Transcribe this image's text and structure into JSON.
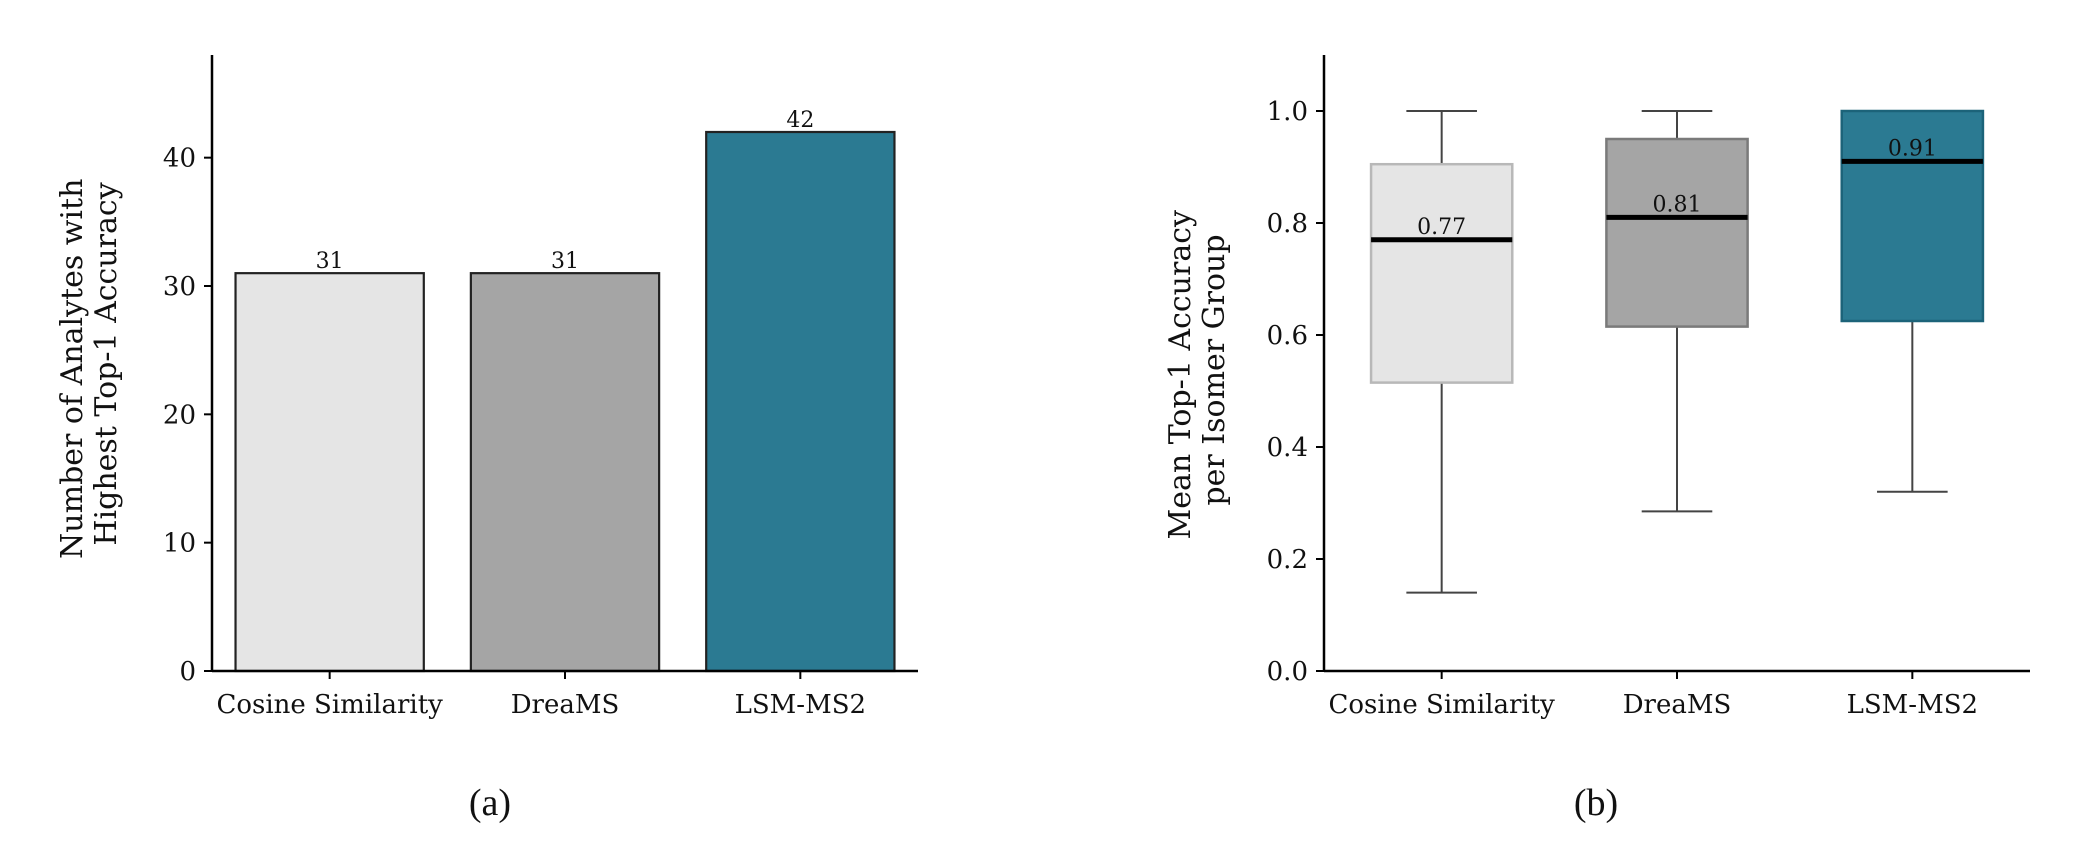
{
  "colors": {
    "cosine": "#e5e5e5",
    "dreams": "#a5a5a5",
    "lsm": "#2b7a92",
    "axis": "#000000"
  },
  "captions": {
    "a": "(a)",
    "b": "(b)"
  },
  "chart_data": [
    {
      "type": "bar",
      "categories": [
        "Cosine Similarity",
        "DreaMS",
        "LSM-MS2"
      ],
      "values": [
        31,
        31,
        42
      ],
      "data_labels": [
        "31",
        "31",
        "42"
      ],
      "ylabel_line1": "Number of Analytes with",
      "ylabel_line2": "Highest Top-1 Accuracy",
      "xlabel": "",
      "ylim": [
        0,
        48
      ],
      "yticks": [
        0,
        10,
        20,
        30,
        40
      ],
      "ytick_labels": [
        "0",
        "10",
        "20",
        "30",
        "40"
      ],
      "grid": false
    },
    {
      "type": "box",
      "categories": [
        "Cosine Similarity",
        "DreaMS",
        "LSM-MS2"
      ],
      "boxes": [
        {
          "whisker_low": 0.14,
          "q1": 0.515,
          "median": 0.77,
          "q3": 0.905,
          "whisker_high": 1.0,
          "median_label": "0.77"
        },
        {
          "whisker_low": 0.285,
          "q1": 0.615,
          "median": 0.81,
          "q3": 0.95,
          "whisker_high": 1.0,
          "median_label": "0.81"
        },
        {
          "whisker_low": 0.32,
          "q1": 0.625,
          "median": 0.91,
          "q3": 1.0,
          "whisker_high": 1.0,
          "median_label": "0.91"
        }
      ],
      "ylabel_line1": "Mean Top-1 Accuracy",
      "ylabel_line2": "per Isomer Group",
      "xlabel": "",
      "ylim": [
        0,
        1.1
      ],
      "yticks": [
        0,
        0.2,
        0.4,
        0.6,
        0.8,
        1.0
      ],
      "ytick_labels": [
        "0.0",
        "0.2",
        "0.4",
        "0.6",
        "0.8",
        "1.0"
      ],
      "grid": false
    }
  ]
}
